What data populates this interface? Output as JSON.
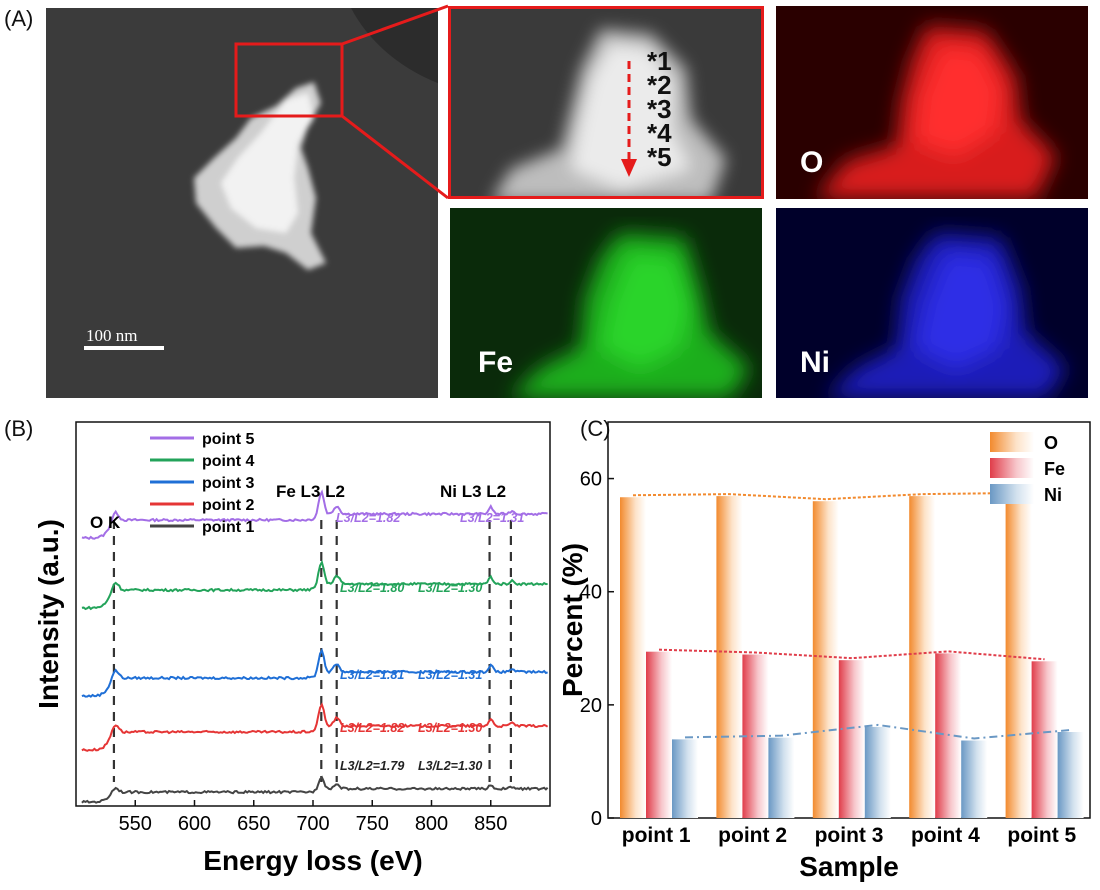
{
  "panels": {
    "a": "(A)",
    "b": "(B)",
    "c": "(C)"
  },
  "panel_a": {
    "scale_bar": "100 nm",
    "points": [
      "*1",
      "*2",
      "*3",
      "*4",
      "*5"
    ],
    "maps": [
      {
        "element": "O",
        "color": "#e82323"
      },
      {
        "element": "Fe",
        "color": "#22c322"
      },
      {
        "element": "Ni",
        "color": "#2b2be0"
      }
    ]
  },
  "chart_data": [
    {
      "type": "line",
      "xlabel": "Energy loss (eV)",
      "ylabel": "Intensity (a.u.)",
      "xlim": [
        500,
        900
      ],
      "xticks": [
        550,
        600,
        650,
        700,
        750,
        800,
        850
      ],
      "edge_labels": {
        "oxygen": "O K",
        "iron": "Fe L3  L2",
        "nickel": "Ni L3  L2"
      },
      "edge_positions_eV": [
        532,
        707,
        720,
        849,
        867
      ],
      "series": [
        {
          "name": "point 5",
          "color": "#a36ee6",
          "ratio_fe": "L3/L2=1.82",
          "ratio_ni": "L3/L2=1.31"
        },
        {
          "name": "point 4",
          "color": "#23a35a",
          "ratio_fe": "L3/L2=1.80",
          "ratio_ni": "L3/L2=1.30"
        },
        {
          "name": "point 3",
          "color": "#1f6fd6",
          "ratio_fe": "L3/L2=1.81",
          "ratio_ni": "L3/L2=1.31"
        },
        {
          "name": "point 2",
          "color": "#e53535",
          "ratio_fe": "L3/L2=1.82",
          "ratio_ni": "L3/L2=1.30"
        },
        {
          "name": "point 1",
          "color": "#444444",
          "ratio_fe": "L3/L2=1.79",
          "ratio_ni": "L3/L2=1.30"
        }
      ]
    },
    {
      "type": "bar",
      "xlabel": "Sample",
      "ylabel": "Percent (%)",
      "ylim": [
        0,
        70
      ],
      "yticks": [
        0,
        20,
        40,
        60
      ],
      "categories": [
        "point 1",
        "point 2",
        "point 3",
        "point 4",
        "point 5"
      ],
      "legend_position": "top-right",
      "series": [
        {
          "name": "O",
          "color": "#f28a2e",
          "values": [
            56.7,
            56.9,
            56.0,
            56.9,
            57.1
          ]
        },
        {
          "name": "Fe",
          "color": "#e03d4a",
          "values": [
            29.4,
            28.9,
            27.9,
            29.1,
            27.7
          ]
        },
        {
          "name": "Ni",
          "color": "#6a98c4",
          "values": [
            13.9,
            14.2,
            16.1,
            13.7,
            15.2
          ]
        }
      ]
    }
  ]
}
